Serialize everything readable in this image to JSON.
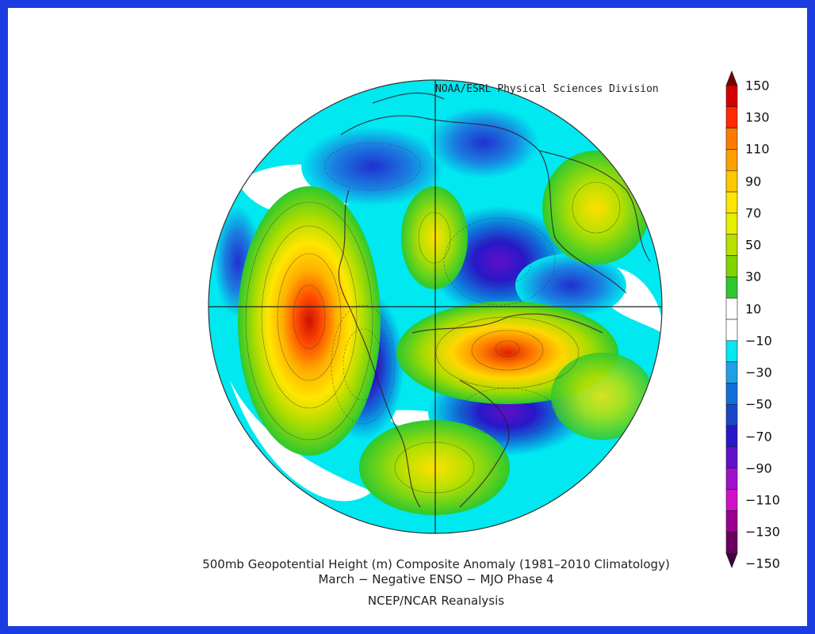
{
  "credit": "NOAA/ESRL Physical Sciences Division",
  "colorbar": {
    "labels": [
      "150",
      "130",
      "110",
      "90",
      "70",
      "50",
      "30",
      "10",
      "−10",
      "−30",
      "−50",
      "−70",
      "−90",
      "−110",
      "−130",
      "−150"
    ],
    "colors": [
      "#7a0000",
      "#d40000",
      "#ff2a00",
      "#ff7a00",
      "#ffa000",
      "#ffc800",
      "#ffe600",
      "#e8ee00",
      "#b8e000",
      "#80d400",
      "#2ec82e",
      "#ffffff",
      "#ffffff",
      "#00e8f0",
      "#1ea0e8",
      "#1070d8",
      "#1848c8",
      "#2818c8",
      "#6010c8",
      "#a010c8",
      "#d010c8",
      "#9a0090",
      "#6a0060",
      "#400040"
    ]
  },
  "caption": {
    "line1": "500mb Geopotential Height (m) Composite Anomaly (1981–2010 Climatology)",
    "line2": "March − Negative ENSO − MJO Phase 4",
    "line3": "NCEP/NCAR Reanalysis"
  }
}
